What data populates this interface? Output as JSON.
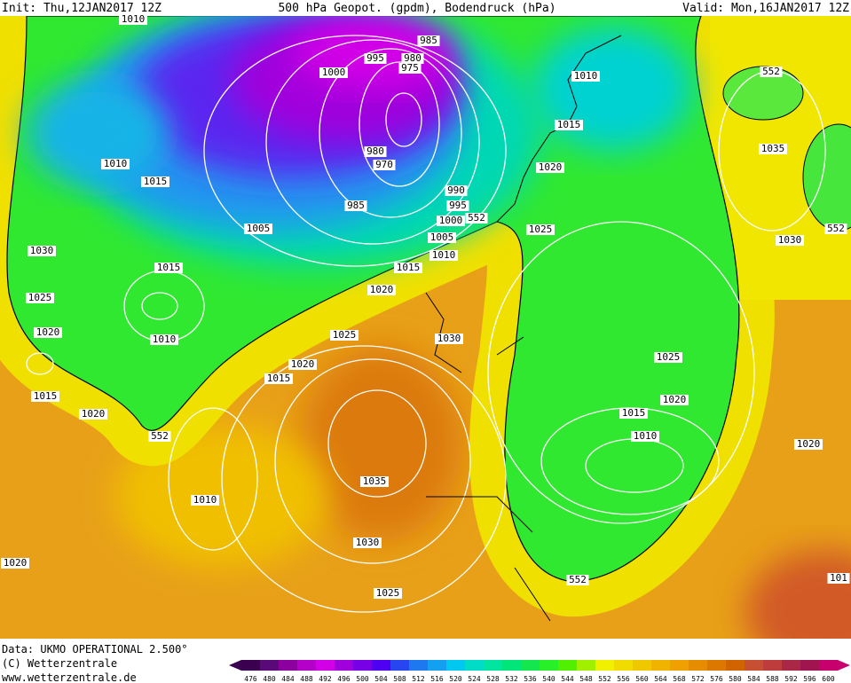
{
  "header": {
    "init": "Init: Thu,12JAN2017 12Z",
    "title": "500 hPa Geopot. (gpdm), Bodendruck (hPa)",
    "valid": "Valid: Mon,16JAN2017 12Z"
  },
  "isobar_labels": [
    "985",
    "995",
    "980",
    "975",
    "1000",
    "1010",
    "1015",
    "980",
    "970",
    "1020",
    "1010",
    "1015",
    "990",
    "995",
    "985",
    "1000",
    "1005",
    "552",
    "1025",
    "1005",
    "1010",
    "1030",
    "1015",
    "1015",
    "1020",
    "1025",
    "1020",
    "1025",
    "1030",
    "1010",
    "1025",
    "1020",
    "1015",
    "1015",
    "1020",
    "1020",
    "1015",
    "1010",
    "552",
    "1020",
    "1035",
    "1010",
    "1030",
    "1020",
    "552",
    "1025",
    "101",
    "552",
    "1035",
    "1030",
    "552",
    "1010"
  ],
  "footer": {
    "data": "Data: UKMO OPERATIONAL 2.500°",
    "copyright": "(C) Wetterzentrale",
    "url": "www.wetterzentrale.de"
  },
  "colorbar": {
    "ticks": [
      476,
      480,
      484,
      488,
      492,
      496,
      500,
      504,
      508,
      512,
      516,
      520,
      524,
      528,
      532,
      536,
      540,
      544,
      548,
      552,
      556,
      560,
      564,
      568,
      572,
      576,
      580,
      584,
      588,
      592,
      596,
      600
    ],
    "colors": [
      "#3c0050",
      "#5a0a78",
      "#8c00a0",
      "#b400c8",
      "#d200e6",
      "#a000dc",
      "#7800e6",
      "#5000f0",
      "#2846f0",
      "#1e78f0",
      "#14a0f0",
      "#00c8f0",
      "#00dcc8",
      "#00e6a0",
      "#00e678",
      "#14e650",
      "#28f028",
      "#50f000",
      "#a0f000",
      "#f0f000",
      "#f0dc00",
      "#f0c800",
      "#f0b400",
      "#f0a000",
      "#e68c00",
      "#dc7800",
      "#d26400",
      "#c85032",
      "#be3c3c",
      "#aa2846",
      "#a01450",
      "#c8006e"
    ]
  }
}
